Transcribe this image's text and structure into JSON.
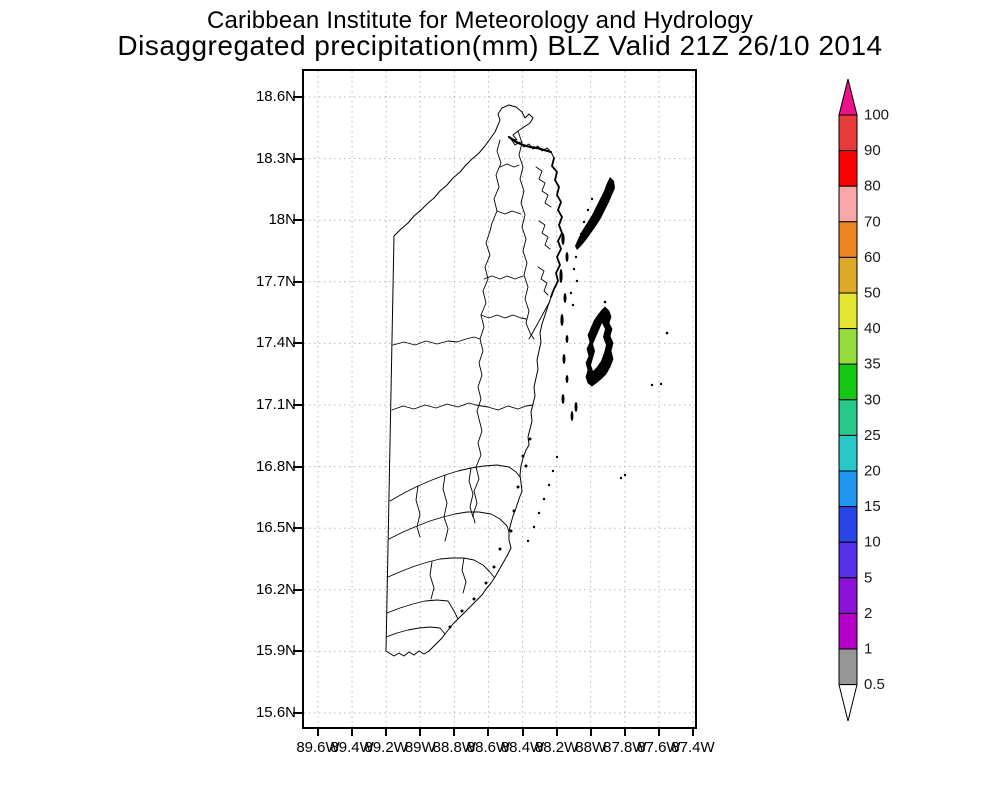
{
  "title": {
    "line1": "Caribbean Institute for Meteorology and Hydrology",
    "line2": "Disaggregated precipitation(mm) BLZ Valid 21Z 26/10 2014"
  },
  "chart_data": {
    "type": "map",
    "title": "Caribbean Institute for Meteorology and Hydrology",
    "subtitle": "Disaggregated precipitation(mm) BLZ Valid 21Z 26/10 2014",
    "variable": "Disaggregated precipitation (mm)",
    "region_code": "BLZ",
    "valid_time": "21Z 26/10 2014",
    "map_region": "Belize coastline with district/watershed boundaries and offshore cayes",
    "precip_shading_visible": false,
    "grid": "dotted",
    "y_axis": {
      "ticks": [
        "18.6N",
        "18.3N",
        "18N",
        "17.7N",
        "17.4N",
        "17.1N",
        "16.8N",
        "16.5N",
        "16.2N",
        "15.9N",
        "15.6N"
      ]
    },
    "x_axis": {
      "ticks": [
        "89.6W",
        "89.4W",
        "89.2W",
        "89W",
        "88.8W",
        "88.6W",
        "88.4W",
        "88.2W",
        "88W",
        "87.8W",
        "87.6W",
        "87.4W"
      ]
    },
    "colorbar": {
      "orientation": "vertical",
      "boundary_labels": [
        "100",
        "90",
        "80",
        "70",
        "60",
        "50",
        "40",
        "35",
        "30",
        "25",
        "20",
        "15",
        "10",
        "5",
        "2",
        "1",
        "0.5"
      ],
      "segment_colors_top_to_bottom": [
        "#e83c3c",
        "#fa0000",
        "#f8a8a8",
        "#ee8422",
        "#dcaa28",
        "#e6e632",
        "#96dc3c",
        "#14c814",
        "#28c88c",
        "#28c8c8",
        "#2096f0",
        "#2846e6",
        "#5532e8",
        "#8c14d8",
        "#b400c8",
        "#969696"
      ],
      "above_max_arrow_color": "#ee1289",
      "below_min_arrow_color": "#ffffff",
      "outline_color": "#000000"
    },
    "grid_color": "#b8b8b8",
    "map_line_color": "#000000"
  }
}
